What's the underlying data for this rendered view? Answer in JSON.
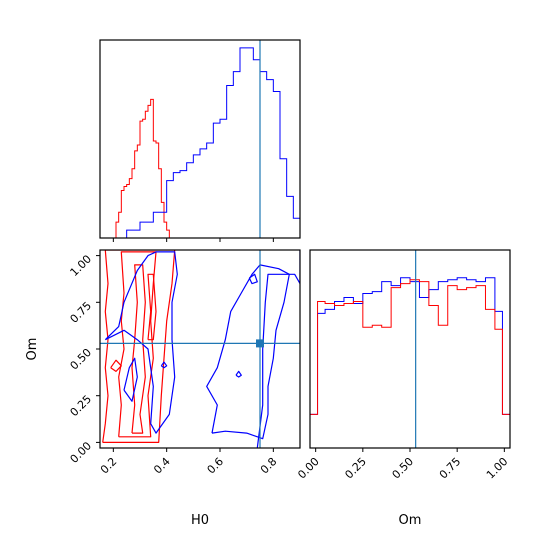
{
  "colors": {
    "series_a": "#ff0000",
    "series_b": "#0000ff",
    "truth": "#1f77b4",
    "axis": "#000000"
  },
  "chart_data": [
    {
      "type": "histogram",
      "panel": "H0 marginal",
      "title": "",
      "xlabel": "",
      "ylabel": "",
      "xlim": [
        0.15,
        0.9
      ],
      "xticks": [
        0.2,
        0.4,
        0.6,
        0.8
      ],
      "truth_x": 0.75,
      "series": [
        {
          "color": "red",
          "bin_edges": [
            0.2,
            0.21,
            0.22,
            0.23,
            0.24,
            0.25,
            0.26,
            0.27,
            0.28,
            0.29,
            0.3,
            0.31,
            0.32,
            0.33,
            0.34,
            0.35,
            0.36,
            0.37,
            0.38,
            0.39,
            0.4,
            0.41,
            0.42
          ],
          "heights": [
            0.0,
            0.08,
            0.13,
            0.24,
            0.26,
            0.27,
            0.3,
            0.35,
            0.44,
            0.47,
            0.59,
            0.6,
            0.64,
            0.67,
            0.7,
            0.49,
            0.48,
            0.35,
            0.18,
            0.08,
            0.04,
            0.0
          ]
        },
        {
          "color": "blue",
          "bin_edges": [
            0.25,
            0.3,
            0.35,
            0.4,
            0.425,
            0.45,
            0.475,
            0.5,
            0.525,
            0.55,
            0.575,
            0.6,
            0.625,
            0.65,
            0.675,
            0.7,
            0.725,
            0.75,
            0.775,
            0.8,
            0.825,
            0.85,
            0.875,
            0.9
          ],
          "heights": [
            0.04,
            0.08,
            0.13,
            0.29,
            0.33,
            0.34,
            0.38,
            0.42,
            0.45,
            0.48,
            0.58,
            0.6,
            0.77,
            0.84,
            0.96,
            0.96,
            0.9,
            0.84,
            0.8,
            0.74,
            0.4,
            0.21,
            0.1
          ]
        }
      ]
    },
    {
      "type": "contour",
      "panel": "H0 vs Om",
      "xlabel": "H0",
      "ylabel": "Om",
      "xlim": [
        0.15,
        0.9
      ],
      "ylim": [
        -0.03,
        1.03
      ],
      "xticks": [
        0.2,
        0.4,
        0.6,
        0.8
      ],
      "yticks": [
        0.0,
        0.25,
        0.5,
        0.75,
        1.0
      ],
      "xtick_labels": [
        "0.2",
        "0.4",
        "0.6",
        "0.8"
      ],
      "ytick_labels": [
        "0.00",
        "0.25",
        "0.50",
        "0.75",
        "1.00"
      ],
      "truth": [
        0.75,
        0.53
      ],
      "series": [
        {
          "color": "red",
          "contours": [
            [
              [
                0.16,
                0.0
              ],
              [
                0.17,
                0.1
              ],
              [
                0.18,
                0.25
              ],
              [
                0.17,
                0.4
              ],
              [
                0.18,
                0.55
              ],
              [
                0.17,
                0.7
              ],
              [
                0.18,
                0.85
              ],
              [
                0.17,
                1.03
              ],
              [
                0.43,
                1.03
              ],
              [
                0.42,
                0.85
              ],
              [
                0.4,
                0.65
              ],
              [
                0.39,
                0.45
              ],
              [
                0.38,
                0.25
              ],
              [
                0.37,
                0.0
              ],
              [
                0.16,
                0.0
              ]
            ],
            [
              [
                0.22,
                0.03
              ],
              [
                0.23,
                0.2
              ],
              [
                0.22,
                0.35
              ],
              [
                0.24,
                0.5
              ],
              [
                0.23,
                0.65
              ],
              [
                0.24,
                0.8
              ],
              [
                0.23,
                1.02
              ],
              [
                0.36,
                1.02
              ],
              [
                0.35,
                0.85
              ],
              [
                0.34,
                0.65
              ],
              [
                0.35,
                0.45
              ],
              [
                0.33,
                0.25
              ],
              [
                0.34,
                0.03
              ],
              [
                0.22,
                0.03
              ]
            ],
            [
              [
                0.27,
                0.05
              ],
              [
                0.28,
                0.2
              ],
              [
                0.27,
                0.4
              ],
              [
                0.28,
                0.55
              ],
              [
                0.29,
                0.75
              ],
              [
                0.28,
                0.95
              ],
              [
                0.31,
                0.95
              ],
              [
                0.32,
                0.75
              ],
              [
                0.31,
                0.55
              ],
              [
                0.32,
                0.35
              ],
              [
                0.3,
                0.15
              ],
              [
                0.31,
                0.05
              ],
              [
                0.27,
                0.05
              ]
            ],
            [
              [
                0.33,
                0.55
              ],
              [
                0.34,
                0.7
              ],
              [
                0.33,
                0.9
              ],
              [
                0.35,
                0.9
              ],
              [
                0.36,
                0.7
              ],
              [
                0.35,
                0.55
              ],
              [
                0.33,
                0.55
              ]
            ],
            [
              [
                0.19,
                0.4
              ],
              [
                0.21,
                0.44
              ],
              [
                0.23,
                0.41
              ],
              [
                0.21,
                0.38
              ],
              [
                0.19,
                0.4
              ]
            ]
          ]
        },
        {
          "color": "blue",
          "contours": [
            [
              [
                0.17,
                0.55
              ],
              [
                0.22,
                0.62
              ],
              [
                0.24,
                0.75
              ],
              [
                0.29,
                0.92
              ],
              [
                0.33,
                1.0
              ],
              [
                0.36,
                1.02
              ],
              [
                0.43,
                1.02
              ],
              [
                0.44,
                0.9
              ],
              [
                0.42,
                0.75
              ],
              [
                0.42,
                0.55
              ],
              [
                0.43,
                0.35
              ],
              [
                0.41,
                0.15
              ],
              [
                0.36,
                0.05
              ],
              [
                0.34,
                0.1
              ],
              [
                0.35,
                0.3
              ],
              [
                0.33,
                0.5
              ],
              [
                0.29,
                0.55
              ],
              [
                0.24,
                0.6
              ],
              [
                0.17,
                0.55
              ]
            ],
            [
              [
                0.24,
                0.28
              ],
              [
                0.26,
                0.4
              ],
              [
                0.28,
                0.45
              ],
              [
                0.29,
                0.35
              ],
              [
                0.27,
                0.22
              ],
              [
                0.24,
                0.28
              ]
            ],
            [
              [
                0.57,
                0.05
              ],
              [
                0.59,
                0.2
              ],
              [
                0.55,
                0.3
              ],
              [
                0.59,
                0.4
              ],
              [
                0.62,
                0.55
              ],
              [
                0.64,
                0.7
              ],
              [
                0.68,
                0.8
              ],
              [
                0.72,
                0.9
              ],
              [
                0.75,
                0.95
              ],
              [
                0.82,
                0.93
              ],
              [
                0.86,
                0.9
              ],
              [
                0.84,
                0.75
              ],
              [
                0.81,
                0.6
              ],
              [
                0.8,
                0.45
              ],
              [
                0.78,
                0.3
              ],
              [
                0.78,
                0.15
              ],
              [
                0.76,
                0.02
              ],
              [
                0.7,
                0.05
              ],
              [
                0.62,
                0.06
              ],
              [
                0.57,
                0.05
              ]
            ],
            [
              [
                0.74,
                -0.03
              ],
              [
                0.76,
                0.2
              ],
              [
                0.76,
                0.5
              ],
              [
                0.77,
                0.75
              ],
              [
                0.78,
                0.9
              ],
              [
                0.88,
                0.9
              ],
              [
                0.9,
                0.85
              ],
              [
                0.9,
                1.03
              ]
            ],
            [
              [
                0.71,
                0.88
              ],
              [
                0.73,
                0.9
              ],
              [
                0.74,
                0.86
              ],
              [
                0.72,
                0.85
              ],
              [
                0.71,
                0.88
              ]
            ],
            [
              [
                0.66,
                0.36
              ],
              [
                0.67,
                0.38
              ],
              [
                0.68,
                0.36
              ],
              [
                0.67,
                0.35
              ],
              [
                0.66,
                0.36
              ]
            ],
            [
              [
                0.38,
                0.41
              ],
              [
                0.39,
                0.43
              ],
              [
                0.4,
                0.41
              ],
              [
                0.39,
                0.4
              ],
              [
                0.38,
                0.41
              ]
            ]
          ]
        }
      ]
    },
    {
      "type": "histogram",
      "panel": "Om marginal",
      "xlabel": "Om",
      "xlim": [
        -0.03,
        1.03
      ],
      "xticks": [
        0.0,
        0.25,
        0.5,
        0.75,
        1.0
      ],
      "xtick_labels": [
        "0.00",
        "0.25",
        "0.50",
        "0.75",
        "1.00"
      ],
      "truth_x": 0.53,
      "series": [
        {
          "color": "blue",
          "bin_edges": [
            -0.03,
            0.01,
            0.05,
            0.1,
            0.15,
            0.2,
            0.25,
            0.3,
            0.35,
            0.4,
            0.45,
            0.5,
            0.55,
            0.6,
            0.65,
            0.7,
            0.75,
            0.8,
            0.85,
            0.9,
            0.95,
            0.99,
            1.03
          ],
          "heights": [
            0.17,
            0.68,
            0.7,
            0.74,
            0.76,
            0.73,
            0.78,
            0.79,
            0.84,
            0.82,
            0.86,
            0.84,
            0.76,
            0.8,
            0.84,
            0.85,
            0.86,
            0.85,
            0.84,
            0.86,
            0.69,
            0.17
          ]
        },
        {
          "color": "red",
          "bin_edges": [
            -0.03,
            0.01,
            0.05,
            0.1,
            0.15,
            0.2,
            0.25,
            0.3,
            0.35,
            0.4,
            0.45,
            0.5,
            0.55,
            0.6,
            0.65,
            0.7,
            0.75,
            0.8,
            0.85,
            0.9,
            0.95,
            0.99,
            1.03
          ],
          "heights": [
            0.17,
            0.74,
            0.73,
            0.72,
            0.73,
            0.74,
            0.61,
            0.62,
            0.61,
            0.81,
            0.83,
            0.85,
            0.84,
            0.72,
            0.62,
            0.82,
            0.8,
            0.81,
            0.82,
            0.7,
            0.6,
            0.17
          ]
        }
      ]
    }
  ]
}
